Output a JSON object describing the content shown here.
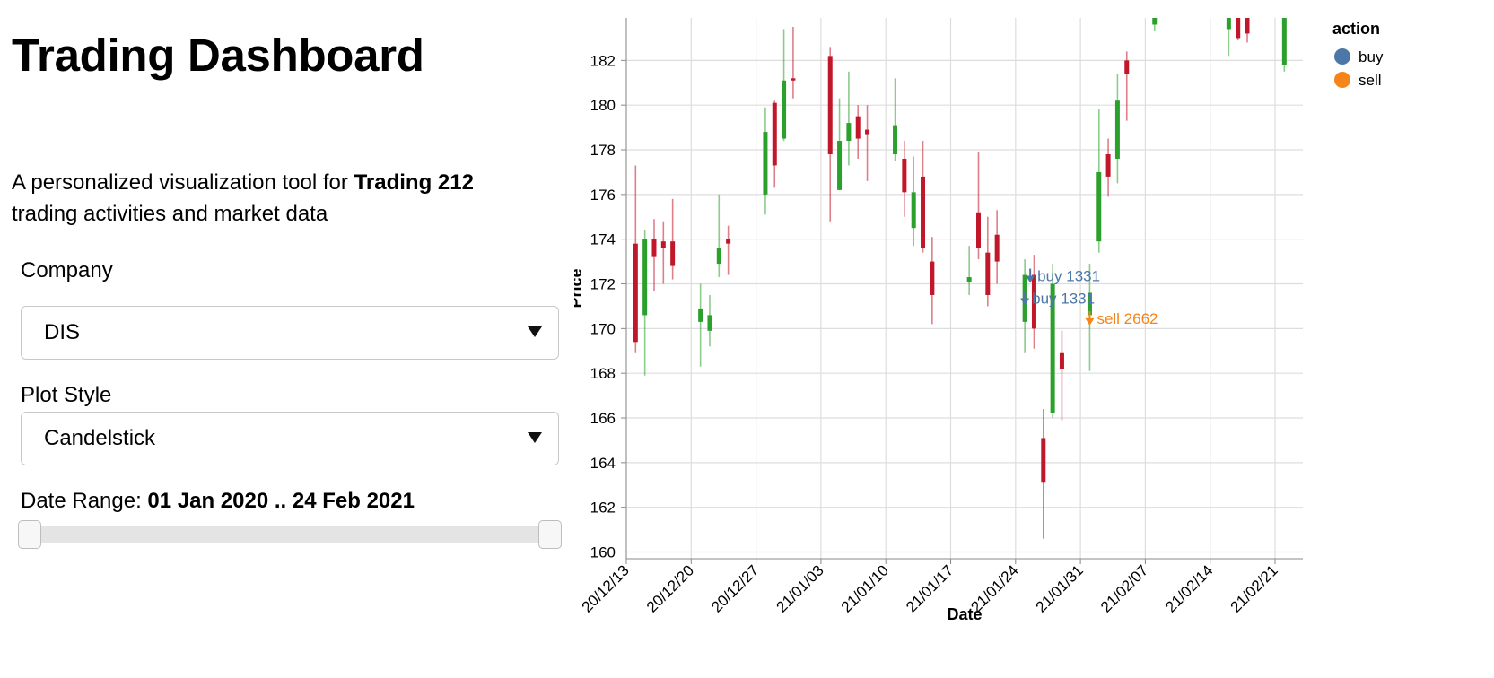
{
  "sidebar": {
    "title": "Trading Dashboard",
    "description_prefix": "A personalized visualization tool for ",
    "description_bold": "Trading 212",
    "description_suffix": "trading activities and market data",
    "company": {
      "label": "Company",
      "value": "DIS"
    },
    "plot_style": {
      "label": "Plot Style",
      "value": "Candelstick"
    },
    "date_range": {
      "label": "Date Range: ",
      "value": "01 Jan 2020 .. 24 Feb 2021",
      "start_fraction": 0.0,
      "end_fraction": 1.0
    }
  },
  "chart_data": {
    "type": "candlestick",
    "xlabel": "Date",
    "ylabel": "Price",
    "x_range": [
      "2020-12-13",
      "2021-02-24"
    ],
    "ylim": [
      159.7,
      183.9
    ],
    "yticks": [
      160,
      162,
      164,
      166,
      168,
      170,
      172,
      174,
      176,
      178,
      180,
      182
    ],
    "xticks": [
      "2020-12-13",
      "2020-12-20",
      "2020-12-27",
      "2021-01-03",
      "2021-01-10",
      "2021-01-17",
      "2021-01-24",
      "2021-01-31",
      "2021-02-07",
      "2021-02-14",
      "2021-02-21"
    ],
    "xtick_labels": [
      "20/12/13",
      "20/12/20",
      "20/12/27",
      "21/01/03",
      "21/01/10",
      "21/01/17",
      "21/01/24",
      "21/01/31",
      "21/02/07",
      "21/02/14",
      "21/02/21"
    ],
    "grid": true,
    "colors": {
      "up": "#2ca02c",
      "down": "#c0182a",
      "buy": "#4c78a8",
      "sell": "#f58518"
    },
    "candles": [
      {
        "date": "2020-12-14",
        "open": 173.8,
        "high": 177.3,
        "low": 168.9,
        "close": 169.4
      },
      {
        "date": "2020-12-15",
        "open": 170.6,
        "high": 174.4,
        "low": 167.9,
        "close": 174.0
      },
      {
        "date": "2020-12-16",
        "open": 174.0,
        "high": 174.9,
        "low": 171.7,
        "close": 173.2
      },
      {
        "date": "2020-12-17",
        "open": 173.9,
        "high": 174.8,
        "low": 172.0,
        "close": 173.6
      },
      {
        "date": "2020-12-18",
        "open": 173.9,
        "high": 175.8,
        "low": 172.2,
        "close": 172.8
      },
      {
        "date": "2020-12-21",
        "open": 170.3,
        "high": 172.0,
        "low": 168.3,
        "close": 170.9
      },
      {
        "date": "2020-12-22",
        "open": 169.9,
        "high": 171.5,
        "low": 169.2,
        "close": 170.6
      },
      {
        "date": "2020-12-23",
        "open": 172.9,
        "high": 176.0,
        "low": 172.3,
        "close": 173.6
      },
      {
        "date": "2020-12-24",
        "open": 174.0,
        "high": 174.6,
        "low": 172.4,
        "close": 173.8
      },
      {
        "date": "2020-12-28",
        "open": 176.0,
        "high": 179.9,
        "low": 175.1,
        "close": 178.8
      },
      {
        "date": "2020-12-29",
        "open": 180.1,
        "high": 180.2,
        "low": 176.3,
        "close": 177.3
      },
      {
        "date": "2020-12-30",
        "open": 178.5,
        "high": 183.4,
        "low": 178.4,
        "close": 181.1
      },
      {
        "date": "2020-12-31",
        "open": 181.2,
        "high": 183.5,
        "low": 180.3,
        "close": 181.1
      },
      {
        "date": "2021-01-04",
        "open": 182.2,
        "high": 182.6,
        "low": 174.8,
        "close": 177.8
      },
      {
        "date": "2021-01-05",
        "open": 176.2,
        "high": 180.3,
        "low": 176.2,
        "close": 178.4
      },
      {
        "date": "2021-01-06",
        "open": 178.4,
        "high": 181.5,
        "low": 177.3,
        "close": 179.2
      },
      {
        "date": "2021-01-07",
        "open": 179.5,
        "high": 180.0,
        "low": 177.6,
        "close": 178.5
      },
      {
        "date": "2021-01-08",
        "open": 178.9,
        "high": 180.0,
        "low": 176.6,
        "close": 178.7
      },
      {
        "date": "2021-01-11",
        "open": 177.8,
        "high": 181.2,
        "low": 177.5,
        "close": 179.1
      },
      {
        "date": "2021-01-12",
        "open": 177.6,
        "high": 178.4,
        "low": 175.0,
        "close": 176.1
      },
      {
        "date": "2021-01-13",
        "open": 174.5,
        "high": 177.7,
        "low": 173.7,
        "close": 176.1
      },
      {
        "date": "2021-01-14",
        "open": 176.8,
        "high": 178.4,
        "low": 173.4,
        "close": 173.6
      },
      {
        "date": "2021-01-15",
        "open": 173.0,
        "high": 174.1,
        "low": 170.2,
        "close": 171.5
      },
      {
        "date": "2021-01-19",
        "open": 172.1,
        "high": 173.7,
        "low": 171.5,
        "close": 172.3
      },
      {
        "date": "2021-01-20",
        "open": 175.2,
        "high": 177.9,
        "low": 173.1,
        "close": 173.6
      },
      {
        "date": "2021-01-21",
        "open": 173.4,
        "high": 175.0,
        "low": 171.0,
        "close": 171.5
      },
      {
        "date": "2021-01-22",
        "open": 174.2,
        "high": 175.3,
        "low": 172.0,
        "close": 173.0
      },
      {
        "date": "2021-01-25",
        "open": 170.3,
        "high": 173.1,
        "low": 168.9,
        "close": 172.4
      },
      {
        "date": "2021-01-26",
        "open": 172.4,
        "high": 173.3,
        "low": 169.1,
        "close": 170.0
      },
      {
        "date": "2021-01-27",
        "open": 165.1,
        "high": 166.4,
        "low": 160.6,
        "close": 163.1
      },
      {
        "date": "2021-01-28",
        "open": 166.2,
        "high": 172.9,
        "low": 166.0,
        "close": 172.0
      },
      {
        "date": "2021-01-29",
        "open": 168.9,
        "high": 169.9,
        "low": 165.9,
        "close": 168.2
      },
      {
        "date": "2021-02-01",
        "open": 170.6,
        "high": 172.9,
        "low": 168.1,
        "close": 171.6
      },
      {
        "date": "2021-02-02",
        "open": 173.9,
        "high": 179.8,
        "low": 173.4,
        "close": 177.0
      },
      {
        "date": "2021-02-03",
        "open": 177.8,
        "high": 178.5,
        "low": 175.9,
        "close": 176.8
      },
      {
        "date": "2021-02-04",
        "open": 177.6,
        "high": 181.4,
        "low": 176.5,
        "close": 180.2
      },
      {
        "date": "2021-02-05",
        "open": 182.0,
        "high": 182.4,
        "low": 179.3,
        "close": 181.4
      },
      {
        "date": "2021-02-08",
        "open": 183.6,
        "high": 184.1,
        "low": 183.3,
        "close": 184.0
      },
      {
        "date": "2021-02-16",
        "open": 183.4,
        "high": 184.1,
        "low": 182.2,
        "close": 184.0
      },
      {
        "date": "2021-02-17",
        "open": 184.0,
        "high": 184.1,
        "low": 182.9,
        "close": 183.0
      },
      {
        "date": "2021-02-18",
        "open": 184.0,
        "high": 184.1,
        "low": 182.8,
        "close": 183.2
      },
      {
        "date": "2021-02-22",
        "open": 181.8,
        "high": 184.0,
        "low": 181.5,
        "close": 183.9
      }
    ],
    "trades": [
      {
        "date": "2021-01-25",
        "price": 171.2,
        "action": "buy",
        "label": "buy 1331"
      },
      {
        "date": "2021-01-25",
        "price": 172.2,
        "action": "buy",
        "label": "buy 1331"
      },
      {
        "date": "2021-02-01",
        "price": 170.3,
        "action": "sell",
        "label": "sell 2662"
      }
    ],
    "legend": {
      "title": "action",
      "position": "right",
      "items": [
        {
          "label": "buy",
          "color": "#4c78a8"
        },
        {
          "label": "sell",
          "color": "#f58518"
        }
      ]
    }
  }
}
